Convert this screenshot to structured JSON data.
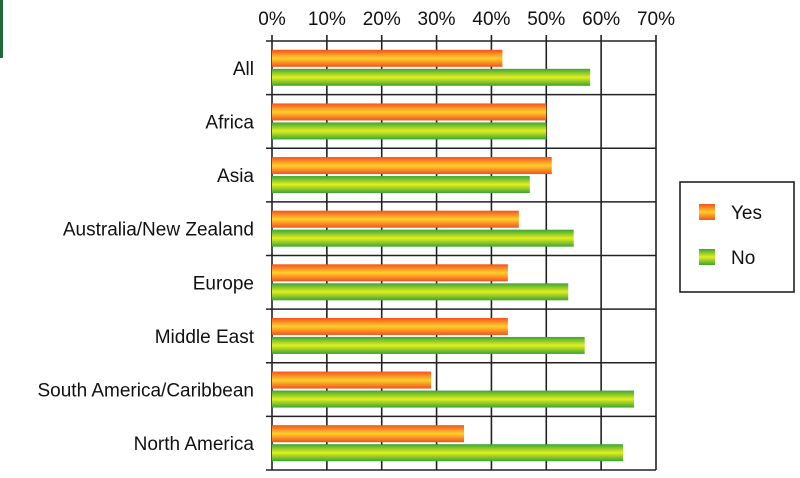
{
  "colors": {
    "yes": "#f4511e",
    "yes_light": "#ffd02a",
    "no": "#3aa535",
    "no_light": "#e4ee1d",
    "accent_strip": "#1e6b3a"
  },
  "chart_data": {
    "type": "bar",
    "orientation": "horizontal",
    "title": "",
    "xlabel": "",
    "ylabel": "",
    "xlim": [
      0,
      70
    ],
    "x_ticks": [
      "0%",
      "10%",
      "20%",
      "30%",
      "40%",
      "50%",
      "60%",
      "70%"
    ],
    "x_axis_position": "top",
    "grid": true,
    "legend_position": "right",
    "categories": [
      "All",
      "Africa",
      "Asia",
      "Australia/New Zealand",
      "Europe",
      "Middle East",
      "South America/Caribbean",
      "North America"
    ],
    "series": [
      {
        "name": "Yes",
        "values": [
          42,
          50,
          51,
          45,
          43,
          43,
          29,
          35
        ]
      },
      {
        "name": "No",
        "values": [
          58,
          50,
          47,
          55,
          54,
          57,
          66,
          64
        ]
      }
    ]
  }
}
